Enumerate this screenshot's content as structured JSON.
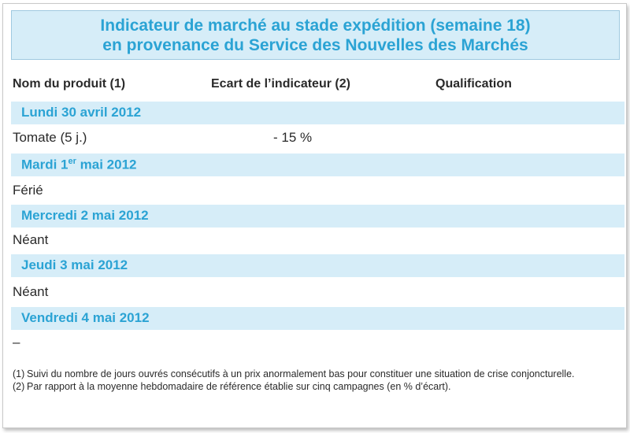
{
  "title": {
    "line1": "Indicateur de marché au stade expédition (semaine 18)",
    "line2": "en provenance du Service des Nouvelles des Marchés"
  },
  "columns": {
    "product": "Nom du produit (1)",
    "ecart": "Ecart de l’indicateur (2)",
    "qualification": "Qualification"
  },
  "days": [
    {
      "label": "Lundi 30 avril 2012",
      "product": "Tomate (5 j.)",
      "ecart": "- 15 %"
    },
    {
      "label_prefix": "Mardi 1",
      "label_sup": "er",
      "label_suffix": " mai 2012",
      "product": "Férié",
      "ecart": ""
    },
    {
      "label": "Mercredi 2 mai 2012",
      "product": "Néant",
      "ecart": ""
    },
    {
      "label": "Jeudi 3 mai 2012",
      "product": "Néant",
      "ecart": ""
    },
    {
      "label": "Vendredi 4 mai 2012",
      "product": "–",
      "ecart": ""
    }
  ],
  "notes": [
    {
      "num": "(1)",
      "text": "Suivi du nombre de jours ouvrés consécutifs à un prix anormalement bas pour constituer une situation de crise conjoncturelle."
    },
    {
      "num": "(2)",
      "text": "Par rapport à la moyenne hebdomadaire de référence établie sur cinq campagnes (en % d’écart)."
    }
  ],
  "colors": {
    "accent": "#2ba3d4",
    "band": "#d6edf8"
  }
}
